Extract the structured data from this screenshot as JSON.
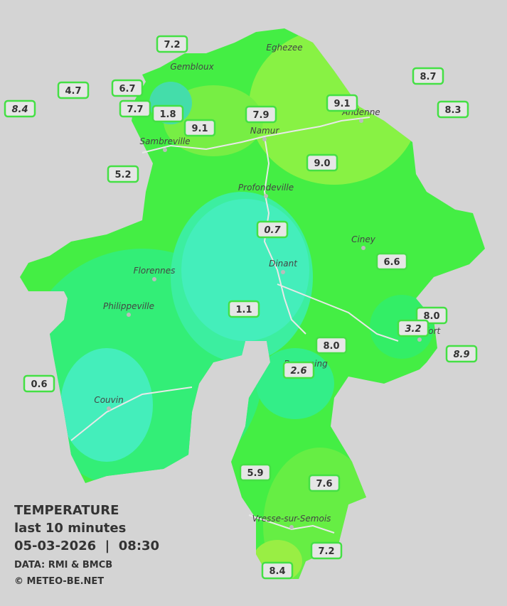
{
  "title": "TEMPERATURE",
  "subtitle": "last 10 minutes",
  "timestamp": "05-03-2026  |  08:30",
  "source": "DATA: RMI & BMCB",
  "copyright": "© METEO-BE.NET",
  "places": [
    "Eghezee",
    "Gembloux",
    "Andenne",
    "Namur",
    "Sambreville",
    "Profondeville",
    "Ciney",
    "Florennes",
    "Dinant",
    "Philippeville",
    "Rochefort",
    "Beauraing",
    "Couvin",
    "Vresse-sur-Semois"
  ],
  "stations": [
    "7.2",
    "4.7",
    "6.7",
    "8.4",
    "7.7",
    "1.8",
    "9.1",
    "7.9",
    "9.1",
    "8.7",
    "8.3",
    "5.2",
    "9.0",
    "0.7",
    "6.6",
    "1.1",
    "8.0",
    "3.2",
    "8.0",
    "8.9",
    "2.6",
    "0.6",
    "5.9",
    "7.6",
    "7.2",
    "8.4"
  ]
}
